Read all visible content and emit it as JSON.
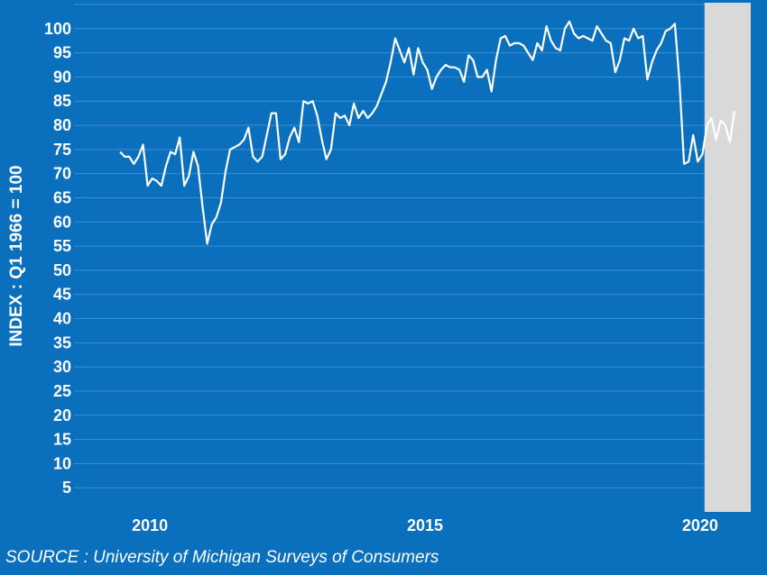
{
  "colors": {
    "background": "#0a6fbd",
    "gridline": "#3f8fd0",
    "line": "#ffffff",
    "recession_band": "#d9d9d9",
    "text": "#ffffff"
  },
  "source": "SOURCE : University of Michigan Surveys of Consumers",
  "chart_data": {
    "type": "line",
    "title": "",
    "xlabel": "",
    "ylabel": "INDEX : Q1 1966 = 100",
    "xlim": [
      2008.62,
      2020.92
    ],
    "ylim": [
      0,
      105
    ],
    "x_ticks": [
      2010,
      2015,
      2020
    ],
    "y_ticks": [
      5,
      10,
      15,
      20,
      25,
      30,
      35,
      40,
      45,
      50,
      55,
      60,
      65,
      70,
      75,
      80,
      85,
      90,
      95,
      100
    ],
    "grid": true,
    "legend": "none",
    "recession": {
      "start": 2020.08,
      "end": 2020.92
    },
    "series": [
      {
        "start": 2009.458,
        "step": 0.08333,
        "values": [
          74.5,
          73.5,
          73.5,
          72.0,
          73.5,
          76.0,
          67.5,
          69.0,
          68.5,
          67.5,
          71.5,
          74.5,
          74.0,
          77.5,
          67.5,
          69.5,
          74.5,
          71.5,
          63.0,
          55.5,
          59.5,
          61.0,
          64.0,
          70.5,
          75.0,
          75.5,
          76.0,
          77.0,
          79.5,
          73.5,
          72.5,
          73.5,
          78.0,
          82.5,
          82.5,
          73.0,
          74.0,
          77.5,
          79.5,
          76.5,
          85.0,
          84.5,
          85.0,
          82.0,
          77.0,
          73.0,
          75.0,
          82.5,
          81.5,
          82.0,
          80.0,
          84.5,
          81.5,
          83.0,
          81.5,
          82.5,
          84.0,
          86.5,
          89.0,
          93.0,
          98.0,
          95.5,
          93.0,
          96.0,
          90.5,
          96.0,
          93.0,
          91.5,
          87.5,
          90.0,
          91.5,
          92.5,
          92.0,
          92.0,
          91.5,
          89.0,
          94.5,
          93.5,
          90.0,
          90.0,
          91.5,
          87.0,
          93.5,
          98.0,
          98.5,
          96.5,
          97.0,
          97.0,
          96.5,
          95.0,
          93.5,
          97.0,
          95.5,
          100.5,
          97.5,
          96.0,
          95.5,
          100.0,
          101.5,
          99.0,
          98.0,
          98.5,
          98.0,
          97.5,
          100.5,
          99.0,
          97.5,
          97.0,
          91.0,
          93.5,
          98.0,
          97.5,
          100.0,
          98.0,
          98.5,
          89.5,
          93.0,
          95.5,
          97.0,
          99.5,
          100.0,
          101.0,
          89.0,
          72.0,
          72.5,
          78.0,
          72.5,
          74.0,
          80.0,
          81.5,
          77.0,
          81.0,
          80.0,
          76.5,
          83.0
        ]
      }
    ]
  }
}
